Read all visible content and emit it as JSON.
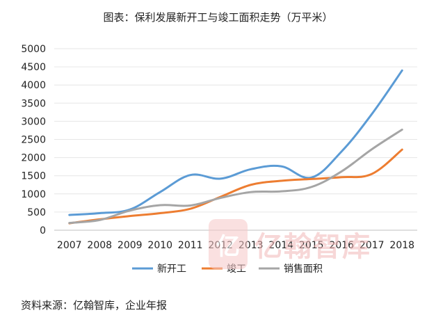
{
  "page": {
    "title": "图表：保利发展新开工与竣工面积走势（万平米）"
  },
  "chart_data": {
    "type": "line",
    "title": "图表：保利发展新开工与竣工面积走势（万平米）",
    "categories": [
      "2007",
      "2008",
      "2009",
      "2010",
      "2011",
      "2012",
      "2013",
      "2014",
      "2015",
      "2016",
      "2017",
      "2018"
    ],
    "ylim": [
      0,
      5000
    ],
    "yticks": [
      0,
      500,
      1000,
      1500,
      2000,
      2500,
      3000,
      3500,
      4000,
      4500,
      5000
    ],
    "series": [
      {
        "name": "新开工",
        "color": "#5b9bd5",
        "values": [
          420,
          470,
          570,
          1050,
          1520,
          1420,
          1680,
          1760,
          1450,
          2170,
          3200,
          4400
        ]
      },
      {
        "name": "竣工",
        "color": "#ed7d31",
        "values": [
          190,
          300,
          390,
          470,
          590,
          920,
          1250,
          1360,
          1410,
          1460,
          1550,
          2220
        ]
      },
      {
        "name": "销售面积",
        "color": "#a5a5a5",
        "values": [
          200,
          280,
          540,
          690,
          680,
          890,
          1050,
          1070,
          1190,
          1620,
          2230,
          2770
        ]
      }
    ],
    "legend_position": "bottom"
  },
  "source": "资料来源：亿翰智库，企业年报",
  "watermark": {
    "seal": "亿",
    "text": "亿翰智库"
  }
}
